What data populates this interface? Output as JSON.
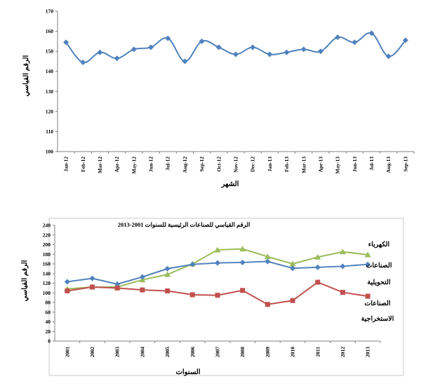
{
  "chart_data": [
    {
      "type": "line",
      "title": "",
      "xlabel": "الشهر",
      "ylabel": "الرقم القياسي",
      "ylim": [
        100,
        170
      ],
      "yticks": [
        "100",
        "110",
        "120",
        "130",
        "140",
        "150",
        "160",
        "170"
      ],
      "grid": false,
      "categories": [
        "Jan-12",
        "Feb-12",
        "Mar-12",
        "Apr-12",
        "May-12",
        "Jun-12",
        "Jul-12",
        "Aug-12",
        "Sep-12",
        "Oct-12",
        "Nov-12",
        "Dec-12",
        "Jan-13",
        "Feb-13",
        "Mar-13",
        "Apr-13",
        "May-13",
        "Jun-13",
        "Jul-13",
        "Aug-13",
        "Sep-13"
      ],
      "series": [
        {
          "color": "#4F81BD",
          "marker": "diamond",
          "smooth": true,
          "values": [
            154.5,
            144.5,
            149.5,
            146.5,
            151.0,
            152.0,
            156.5,
            145.0,
            155.0,
            152.0,
            148.5,
            152.0,
            148.5,
            149.5,
            151.0,
            150.0,
            157.0,
            154.5,
            159.0,
            147.5,
            155.5
          ]
        }
      ]
    },
    {
      "type": "line",
      "title": "الرقم القياسي للصناعات الرئيسية للسنوات 2001-2013",
      "xlabel": "السنوات",
      "ylabel": "الرقم القياسي",
      "ylim": [
        0,
        240
      ],
      "yticks": [
        "0",
        "20",
        "40",
        "60",
        "80",
        "100",
        "120",
        "140",
        "160",
        "180",
        "200",
        "220",
        "240"
      ],
      "grid": false,
      "categories": [
        "2001",
        "2002",
        "2003",
        "2004",
        "2005",
        "2006",
        "2007",
        "2008",
        "2009",
        "2010",
        "2011",
        "2012",
        "2013"
      ],
      "series": [
        {
          "name": "الكهرباء",
          "color": "#9BBB59",
          "marker": "triangle",
          "values": [
            108,
            112,
            112,
            127,
            138,
            160,
            189,
            191,
            175,
            160,
            174,
            185,
            179
          ]
        },
        {
          "name": "الصناعات التحويلية",
          "color": "#4F81BD",
          "marker": "diamond",
          "values": [
            123,
            130,
            118,
            133,
            150,
            159,
            162,
            163,
            165,
            151,
            153,
            155,
            159
          ]
        },
        {
          "name": "الصناعات الاستخراجية",
          "color": "#C0504D",
          "marker": "square",
          "values": [
            104,
            112,
            110,
            106,
            104,
            96,
            95,
            105,
            76,
            84,
            122,
            101,
            93
          ]
        }
      ]
    }
  ]
}
